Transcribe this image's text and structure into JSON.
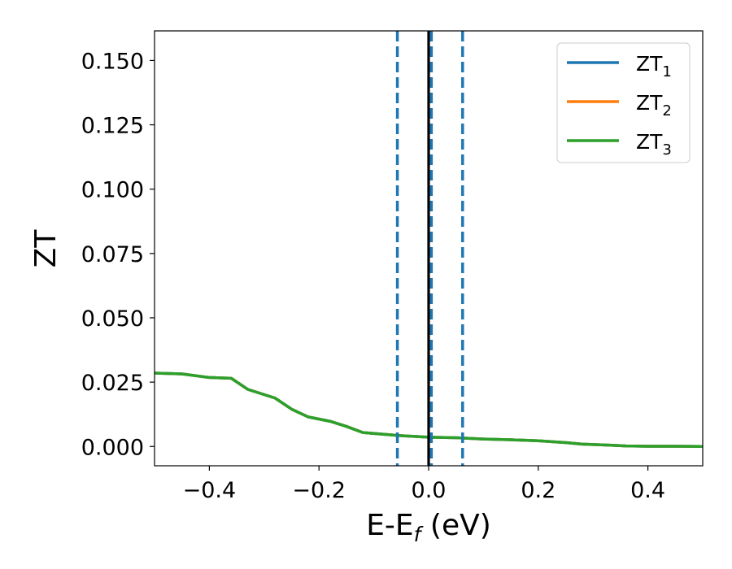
{
  "chart_data": {
    "type": "line",
    "xlabel": {
      "main": "E-E",
      "sub": "f",
      "rest": " (eV)"
    },
    "ylabel": "ZT",
    "xlim": [
      -0.5,
      0.5
    ],
    "ylim": [
      -0.0075,
      0.1615
    ],
    "x_ticks": [
      {
        "value": -0.4,
        "label": "−0.4"
      },
      {
        "value": -0.2,
        "label": "−0.2"
      },
      {
        "value": 0.0,
        "label": "0.0"
      },
      {
        "value": 0.2,
        "label": "0.2"
      },
      {
        "value": 0.4,
        "label": "0.4"
      }
    ],
    "y_ticks": [
      {
        "value": 0.0,
        "label": "0.000"
      },
      {
        "value": 0.025,
        "label": "0.025"
      },
      {
        "value": 0.05,
        "label": "0.050"
      },
      {
        "value": 0.075,
        "label": "0.075"
      },
      {
        "value": 0.1,
        "label": "0.100"
      },
      {
        "value": 0.125,
        "label": "0.125"
      },
      {
        "value": 0.15,
        "label": "0.150"
      }
    ],
    "grid": false,
    "legend_position": "top-right",
    "series": [
      {
        "name": "ZT",
        "subscript": "1",
        "color": "#1f77b4",
        "x": [
          -0.5,
          -0.45,
          -0.4,
          -0.36,
          -0.33,
          -0.28,
          -0.25,
          -0.22,
          -0.18,
          -0.15,
          -0.12,
          -0.08,
          -0.05,
          0.0,
          0.05,
          0.1,
          0.15,
          0.2,
          0.25,
          0.28,
          0.32,
          0.36,
          0.4,
          0.45,
          0.5
        ],
        "y": [
          0.0285,
          0.0282,
          0.0268,
          0.0265,
          0.0222,
          0.0188,
          0.0145,
          0.0115,
          0.0098,
          0.0078,
          0.0054,
          0.0047,
          0.0042,
          0.0036,
          0.0034,
          0.0029,
          0.0026,
          0.0022,
          0.0015,
          0.0009,
          0.0006,
          0.0002,
          0.0001,
          0.0001,
          0.0
        ]
      },
      {
        "name": "ZT",
        "subscript": "2",
        "color": "#ff7f0e",
        "x": [
          -0.5,
          -0.45,
          -0.4,
          -0.36,
          -0.33,
          -0.28,
          -0.25,
          -0.22,
          -0.18,
          -0.15,
          -0.12,
          -0.08,
          -0.05,
          0.0,
          0.05,
          0.1,
          0.15,
          0.2,
          0.25,
          0.28,
          0.32,
          0.36,
          0.4,
          0.45,
          0.5
        ],
        "y": [
          0.0285,
          0.0282,
          0.0268,
          0.0265,
          0.0222,
          0.0188,
          0.0145,
          0.0115,
          0.0098,
          0.0078,
          0.0054,
          0.0047,
          0.0042,
          0.0036,
          0.0034,
          0.0029,
          0.0026,
          0.0022,
          0.0015,
          0.0009,
          0.0006,
          0.0002,
          0.0001,
          0.0001,
          0.0
        ]
      },
      {
        "name": "ZT",
        "subscript": "3",
        "color": "#2ca02c",
        "x": [
          -0.5,
          -0.45,
          -0.4,
          -0.36,
          -0.33,
          -0.28,
          -0.25,
          -0.22,
          -0.18,
          -0.15,
          -0.12,
          -0.08,
          -0.05,
          0.0,
          0.05,
          0.1,
          0.15,
          0.2,
          0.25,
          0.28,
          0.32,
          0.36,
          0.4,
          0.45,
          0.5
        ],
        "y": [
          0.0285,
          0.0282,
          0.0268,
          0.0265,
          0.0222,
          0.0188,
          0.0145,
          0.0115,
          0.0098,
          0.0078,
          0.0054,
          0.0047,
          0.0042,
          0.0036,
          0.0034,
          0.0029,
          0.0026,
          0.0022,
          0.0015,
          0.0009,
          0.0006,
          0.0002,
          0.0001,
          0.0001,
          0.0
        ]
      }
    ],
    "vertical_lines": [
      {
        "x": -0.057,
        "color": "#1f77b4",
        "style": "dashed"
      },
      {
        "x": 0.005,
        "color": "#1f77b4",
        "style": "dashed"
      },
      {
        "x": 0.062,
        "color": "#1f77b4",
        "style": "dashed"
      },
      {
        "x": 0.0,
        "color": "#000000",
        "style": "solid"
      }
    ]
  }
}
